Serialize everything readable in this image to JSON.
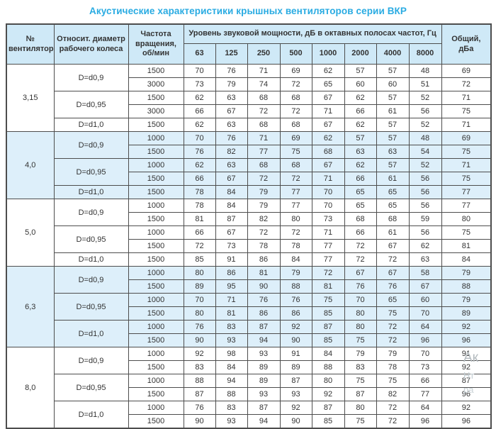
{
  "title": "Акустические характеристики крышных вентиляторов серии ВКР",
  "colors": {
    "accent": "#29abe2",
    "header_bg": "#cfe9f7",
    "highlight_row_bg": "#ddeffa",
    "border": "#4d4d4d"
  },
  "table": {
    "headers": {
      "fan_number": "№ вентилятора",
      "diameter": "Относит. диаметр рабочего колеса",
      "speed": "Частота вращения, об/мин",
      "spl_group": "Уровень звуковой мощности, дБ в октавных полосах частот, Гц",
      "frequencies": [
        "63",
        "125",
        "250",
        "500",
        "1000",
        "2000",
        "4000",
        "8000"
      ],
      "total": "Общий, дБа"
    },
    "groups": [
      {
        "fan": "3,15",
        "highlight": false,
        "subgroups": [
          {
            "diameter": "D=d0,9",
            "rows": [
              {
                "speed": "1500",
                "levels": [
                  70,
                  76,
                  71,
                  69,
                  62,
                  57,
                  57,
                  48
                ],
                "total": 69
              },
              {
                "speed": "3000",
                "levels": [
                  73,
                  79,
                  74,
                  72,
                  65,
                  60,
                  60,
                  51
                ],
                "total": 72
              }
            ]
          },
          {
            "diameter": "D=d0,95",
            "rows": [
              {
                "speed": "1500",
                "levels": [
                  62,
                  63,
                  68,
                  68,
                  67,
                  62,
                  57,
                  52
                ],
                "total": 71
              },
              {
                "speed": "3000",
                "levels": [
                  66,
                  67,
                  72,
                  72,
                  71,
                  66,
                  61,
                  56
                ],
                "total": 75
              }
            ]
          },
          {
            "diameter": "D=d1,0",
            "rows": [
              {
                "speed": "1500",
                "levels": [
                  62,
                  63,
                  68,
                  68,
                  67,
                  62,
                  57,
                  52
                ],
                "total": 71
              }
            ]
          }
        ]
      },
      {
        "fan": "4,0",
        "highlight": true,
        "subgroups": [
          {
            "diameter": "D=d0,9",
            "rows": [
              {
                "speed": "1000",
                "levels": [
                  70,
                  76,
                  71,
                  69,
                  62,
                  57,
                  57,
                  48
                ],
                "total": 69
              },
              {
                "speed": "1500",
                "levels": [
                  76,
                  82,
                  77,
                  75,
                  68,
                  63,
                  63,
                  54
                ],
                "total": 75
              }
            ]
          },
          {
            "diameter": "D=d0,95",
            "rows": [
              {
                "speed": "1000",
                "levels": [
                  62,
                  63,
                  68,
                  68,
                  67,
                  62,
                  57,
                  52
                ],
                "total": 71
              },
              {
                "speed": "1500",
                "levels": [
                  66,
                  67,
                  72,
                  72,
                  71,
                  66,
                  61,
                  56
                ],
                "total": 75
              }
            ]
          },
          {
            "diameter": "D=d1,0",
            "rows": [
              {
                "speed": "1500",
                "levels": [
                  78,
                  84,
                  79,
                  77,
                  70,
                  65,
                  65,
                  56
                ],
                "total": 77
              }
            ]
          }
        ]
      },
      {
        "fan": "5,0",
        "highlight": false,
        "subgroups": [
          {
            "diameter": "D=d0,9",
            "rows": [
              {
                "speed": "1000",
                "levels": [
                  78,
                  84,
                  79,
                  77,
                  70,
                  65,
                  65,
                  56
                ],
                "total": 77
              },
              {
                "speed": "1500",
                "levels": [
                  81,
                  87,
                  82,
                  80,
                  73,
                  68,
                  68,
                  59
                ],
                "total": 80
              }
            ]
          },
          {
            "diameter": "D=d0,95",
            "rows": [
              {
                "speed": "1000",
                "levels": [
                  66,
                  67,
                  72,
                  72,
                  71,
                  66,
                  61,
                  56
                ],
                "total": 75
              },
              {
                "speed": "1500",
                "levels": [
                  72,
                  73,
                  78,
                  78,
                  77,
                  72,
                  67,
                  62
                ],
                "total": 81
              }
            ]
          },
          {
            "diameter": "D=d1,0",
            "rows": [
              {
                "speed": "1500",
                "levels": [
                  85,
                  91,
                  86,
                  84,
                  77,
                  72,
                  72,
                  63
                ],
                "total": 84
              }
            ]
          }
        ]
      },
      {
        "fan": "6,3",
        "highlight": true,
        "subgroups": [
          {
            "diameter": "D=d0,9",
            "rows": [
              {
                "speed": "1000",
                "levels": [
                  80,
                  86,
                  81,
                  79,
                  72,
                  67,
                  67,
                  58
                ],
                "total": 79
              },
              {
                "speed": "1500",
                "levels": [
                  89,
                  95,
                  90,
                  88,
                  81,
                  76,
                  76,
                  67
                ],
                "total": 88
              }
            ]
          },
          {
            "diameter": "D=d0,95",
            "rows": [
              {
                "speed": "1000",
                "levels": [
                  70,
                  71,
                  76,
                  76,
                  75,
                  70,
                  65,
                  60
                ],
                "total": 79
              },
              {
                "speed": "1500",
                "levels": [
                  80,
                  81,
                  86,
                  86,
                  85,
                  80,
                  75,
                  70
                ],
                "total": 89
              }
            ]
          },
          {
            "diameter": "D=d1,0",
            "rows": [
              {
                "speed": "1000",
                "levels": [
                  76,
                  83,
                  87,
                  92,
                  87,
                  80,
                  72,
                  64
                ],
                "total": 92
              },
              {
                "speed": "1500",
                "levels": [
                  90,
                  93,
                  94,
                  90,
                  85,
                  75,
                  72,
                  96
                ],
                "total": 96
              }
            ]
          }
        ]
      },
      {
        "fan": "8,0",
        "highlight": false,
        "subgroups": [
          {
            "diameter": "D=d0,9",
            "rows": [
              {
                "speed": "1000",
                "levels": [
                  92,
                  98,
                  93,
                  91,
                  84,
                  79,
                  79,
                  70
                ],
                "total": 91
              },
              {
                "speed": "1500",
                "levels": [
                  83,
                  84,
                  89,
                  89,
                  88,
                  83,
                  78,
                  73
                ],
                "total": 92
              }
            ]
          },
          {
            "diameter": "D=d0,95",
            "rows": [
              {
                "speed": "1000",
                "levels": [
                  88,
                  94,
                  89,
                  87,
                  80,
                  75,
                  75,
                  66
                ],
                "total": 87
              },
              {
                "speed": "1500",
                "levels": [
                  87,
                  88,
                  93,
                  93,
                  92,
                  87,
                  82,
                  77
                ],
                "total": 96
              }
            ]
          },
          {
            "diameter": "D=d1,0",
            "rows": [
              {
                "speed": "1000",
                "levels": [
                  76,
                  83,
                  87,
                  92,
                  87,
                  80,
                  72,
                  64
                ],
                "total": 92
              },
              {
                "speed": "1500",
                "levels": [
                  90,
                  93,
                  94,
                  90,
                  85,
                  75,
                  72,
                  96
                ],
                "total": 96
              }
            ]
          }
        ]
      }
    ]
  },
  "watermark": {
    "fragments": [
      "Ак",
      "Нт",
      "ра"
    ]
  }
}
